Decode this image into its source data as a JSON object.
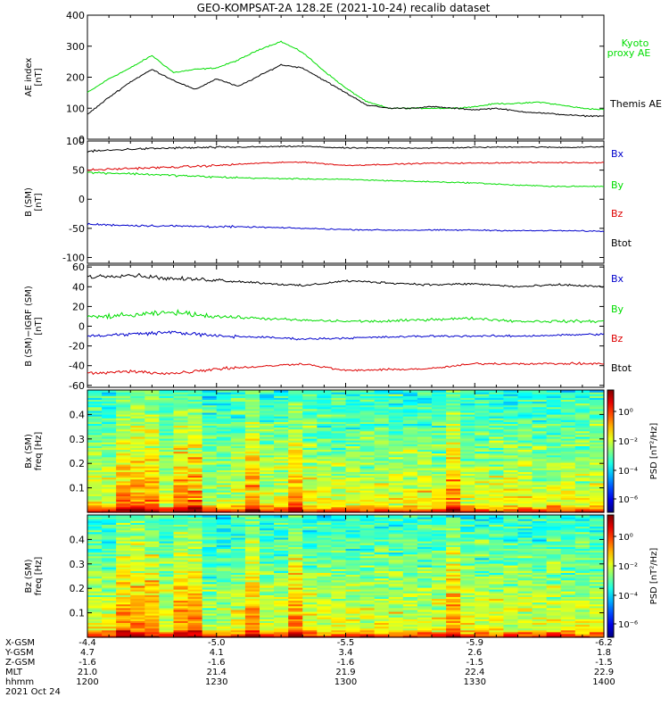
{
  "title": "GEO-KOMPSAT-2A 128.2E (2021-10-24) recalib dataset",
  "colors": {
    "black": "#000000",
    "green": "#00dd00",
    "red": "#dd0000",
    "blue": "#0000cc"
  },
  "chart_data": [
    {
      "type": "line",
      "ylabel": [
        "AE index",
        "[nT]"
      ],
      "ylim": [
        0,
        400
      ],
      "yticks": [
        0,
        100,
        200,
        300,
        400
      ],
      "x": [
        0,
        5,
        10,
        15,
        20,
        25,
        30,
        35,
        40,
        45,
        50,
        55,
        60,
        65,
        70,
        75,
        80,
        85,
        90,
        95,
        100,
        105,
        110,
        115,
        120
      ],
      "series": [
        {
          "name": "Kyoto proxy AE",
          "legend": [
            "Kyoto",
            "proxy AE"
          ],
          "color": "#00dd00",
          "values": [
            150,
            195,
            230,
            270,
            215,
            225,
            230,
            255,
            290,
            315,
            280,
            220,
            165,
            120,
            100,
            100,
            100,
            100,
            105,
            115,
            115,
            120,
            110,
            100,
            95
          ]
        },
        {
          "name": "Themis AE",
          "legend": [
            "Themis AE"
          ],
          "color": "#000000",
          "values": [
            80,
            135,
            185,
            225,
            190,
            160,
            195,
            170,
            205,
            240,
            230,
            190,
            150,
            110,
            100,
            100,
            105,
            100,
            95,
            100,
            90,
            85,
            80,
            75,
            75
          ]
        }
      ]
    },
    {
      "type": "line",
      "ylabel": [
        "B (SM)",
        "[nT]"
      ],
      "ylim": [
        -110,
        100
      ],
      "yticks": [
        -100,
        -50,
        0,
        50,
        100
      ],
      "x": [
        0,
        10,
        20,
        30,
        40,
        50,
        60,
        70,
        80,
        90,
        100,
        110,
        120
      ],
      "legend": [
        "Bx",
        "By",
        "Bz",
        "Btot"
      ],
      "legend_colors": [
        "#0000cc",
        "#00dd00",
        "#dd0000",
        "#000000"
      ],
      "series": [
        {
          "name": "Btot",
          "color": "#000000",
          "values": [
            82,
            86,
            88,
            89,
            90,
            91,
            88,
            88,
            88,
            89,
            90,
            89,
            90
          ]
        },
        {
          "name": "Bz",
          "color": "#dd0000",
          "values": [
            50,
            53,
            55,
            58,
            62,
            64,
            58,
            60,
            62,
            62,
            63,
            63,
            63
          ]
        },
        {
          "name": "By",
          "color": "#00dd00",
          "values": [
            46,
            44,
            41,
            38,
            36,
            35,
            34,
            32,
            30,
            28,
            24,
            22,
            22
          ]
        },
        {
          "name": "Bx",
          "color": "#0000cc",
          "values": [
            -43,
            -45,
            -46,
            -47,
            -48,
            -50,
            -52,
            -53,
            -53,
            -53,
            -54,
            -54,
            -55
          ]
        }
      ]
    },
    {
      "type": "line",
      "ylabel": [
        "B (SM)−IGRF (SM)",
        "[nT]"
      ],
      "ylim": [
        -62,
        62
      ],
      "yticks": [
        -60,
        -40,
        -20,
        0,
        20,
        40,
        60
      ],
      "x": [
        0,
        10,
        20,
        30,
        40,
        50,
        60,
        70,
        80,
        90,
        100,
        110,
        120
      ],
      "legend": [
        "Bx",
        "By",
        "Bz",
        "Btot"
      ],
      "legend_colors": [
        "#0000cc",
        "#00dd00",
        "#dd0000",
        "#000000"
      ],
      "series": [
        {
          "name": "Btot",
          "color": "#000000",
          "values": [
            50,
            52,
            48,
            47,
            44,
            41,
            46,
            44,
            42,
            43,
            40,
            42,
            40
          ]
        },
        {
          "name": "By",
          "color": "#00dd00",
          "values": [
            9,
            11,
            14,
            10,
            8,
            6,
            5,
            5,
            7,
            8,
            5,
            5,
            5
          ]
        },
        {
          "name": "Bx",
          "color": "#0000cc",
          "values": [
            -10,
            -8,
            -6,
            -10,
            -11,
            -13,
            -12,
            -11,
            -10,
            -10,
            -10,
            -9,
            -8
          ]
        },
        {
          "name": "Bz",
          "color": "#dd0000",
          "values": [
            -48,
            -46,
            -48,
            -43,
            -41,
            -38,
            -45,
            -44,
            -43,
            -38,
            -38,
            -38,
            -38
          ]
        }
      ]
    },
    {
      "type": "heatmap",
      "ylabel": [
        "Bx (SM)",
        "freq [Hz]"
      ],
      "ylim": [
        0,
        0.5
      ],
      "yticks": [
        0.1,
        0.2,
        0.3,
        0.4
      ],
      "colorbar": {
        "label": "PSD [nT²/Hz]",
        "ticks": [
          "10⁰",
          "10⁻²",
          "10⁻⁴",
          "10⁻⁶"
        ]
      }
    },
    {
      "type": "heatmap",
      "ylabel": [
        "Bz (SM)",
        "freq [Hz]"
      ],
      "ylim": [
        0,
        0.5
      ],
      "yticks": [
        0.1,
        0.2,
        0.3,
        0.4
      ],
      "colorbar": {
        "label": "PSD [nT²/Hz]",
        "ticks": [
          "10⁰",
          "10⁻²",
          "10⁻⁴",
          "10⁻⁶"
        ]
      }
    }
  ],
  "ephemeris": {
    "labels": [
      "X-GSM",
      "Y-GSM",
      "Z-GSM",
      "MLT",
      "hhmm",
      "2021 Oct 24"
    ],
    "columns": [
      {
        "values": [
          "-4.4",
          "4.7",
          "-1.6",
          "21.0",
          "1200"
        ]
      },
      {
        "values": [
          "-5.0",
          "4.1",
          "-1.6",
          "21.4",
          "1230"
        ]
      },
      {
        "values": [
          "-5.5",
          "3.4",
          "-1.6",
          "21.9",
          "1300"
        ]
      },
      {
        "values": [
          "-5.9",
          "2.6",
          "-1.5",
          "22.4",
          "1330"
        ]
      },
      {
        "values": [
          "-6.2",
          "1.8",
          "-1.5",
          "22.9",
          "1400"
        ]
      }
    ]
  }
}
